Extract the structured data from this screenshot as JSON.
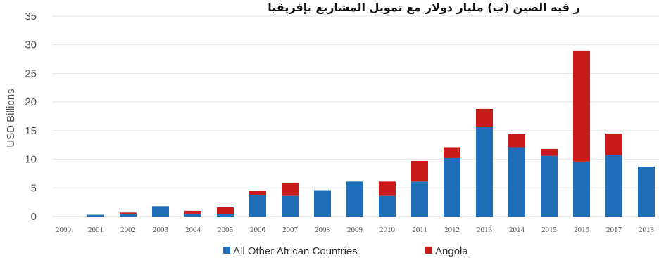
{
  "chart_data": {
    "type": "bar",
    "stacked": true,
    "title": "ر فيه الصين (ب) مليار دولار مع تمويل المشاريع بإفريقيا",
    "ylabel": "USD Billions",
    "xlabel": "",
    "ylim": [
      0,
      35
    ],
    "yticks": [
      "0",
      "5",
      "10",
      "15",
      "20",
      "25",
      "30",
      "35"
    ],
    "categories": [
      "2000",
      "2001",
      "2002",
      "2003",
      "2004",
      "2005",
      "2006",
      "2007",
      "2008",
      "2009",
      "2010",
      "2011",
      "2012",
      "2013",
      "2014",
      "2015",
      "2016",
      "2017",
      "2018"
    ],
    "series": [
      {
        "name": "All Other African Countries",
        "color": "#1f6fb8",
        "values": [
          0,
          0.3,
          0.5,
          1.8,
          0.5,
          0.4,
          3.7,
          3.6,
          4.6,
          6.1,
          3.6,
          6.1,
          10.2,
          15.6,
          12.1,
          10.6,
          9.6,
          10.7,
          8.7
        ]
      },
      {
        "name": "Angola",
        "color": "#c91a1a",
        "values": [
          0,
          0,
          0.2,
          0,
          0.5,
          1.2,
          0.8,
          2.3,
          0,
          0,
          2.5,
          3.6,
          1.9,
          3.2,
          2.3,
          1.2,
          19.4,
          3.8,
          0
        ]
      }
    ],
    "grid": true,
    "legend": "bottom"
  }
}
